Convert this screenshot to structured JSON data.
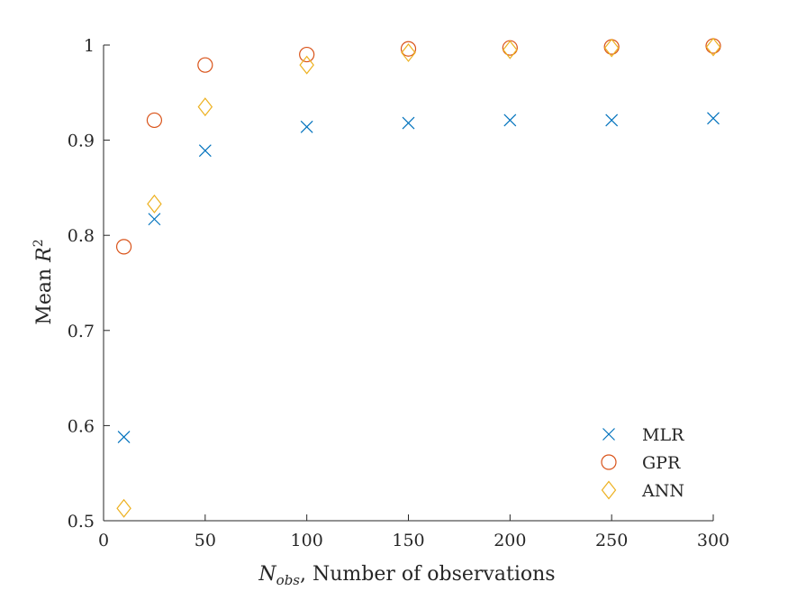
{
  "chart_data": {
    "type": "scatter",
    "title": "",
    "xlabel_symbol": "N",
    "xlabel_subscript": "obs",
    "xlabel_rest": ", Number of observations",
    "ylabel_text": "Mean ",
    "ylabel_symbol": "R",
    "ylabel_superscript": "2",
    "xlim": [
      0,
      300
    ],
    "ylim": [
      0.5,
      1
    ],
    "xticks": [
      0,
      50,
      100,
      150,
      200,
      250,
      300
    ],
    "yticks": [
      0.5,
      0.6,
      0.7,
      0.8,
      0.9,
      1
    ],
    "xtick_labels": [
      "0",
      "50",
      "100",
      "150",
      "200",
      "250",
      "300"
    ],
    "ytick_labels": [
      "0.5",
      "0.6",
      "0.7",
      "0.8",
      "0.9",
      "1"
    ],
    "grid": false,
    "legend_position": "bottom-right",
    "x": [
      10,
      25,
      50,
      100,
      150,
      200,
      250,
      300
    ],
    "series": [
      {
        "name": "MLR",
        "marker": "x",
        "color": "#0072BD",
        "values": [
          0.588,
          0.817,
          0.889,
          0.914,
          0.918,
          0.921,
          0.921,
          0.923
        ]
      },
      {
        "name": "GPR",
        "marker": "circle",
        "color": "#D95319",
        "values": [
          0.788,
          0.921,
          0.979,
          0.99,
          0.996,
          0.997,
          0.998,
          0.999
        ]
      },
      {
        "name": "ANN",
        "marker": "diamond",
        "color": "#EDB120",
        "values": [
          0.513,
          0.833,
          0.935,
          0.979,
          0.992,
          0.995,
          0.997,
          0.998
        ]
      }
    ]
  }
}
